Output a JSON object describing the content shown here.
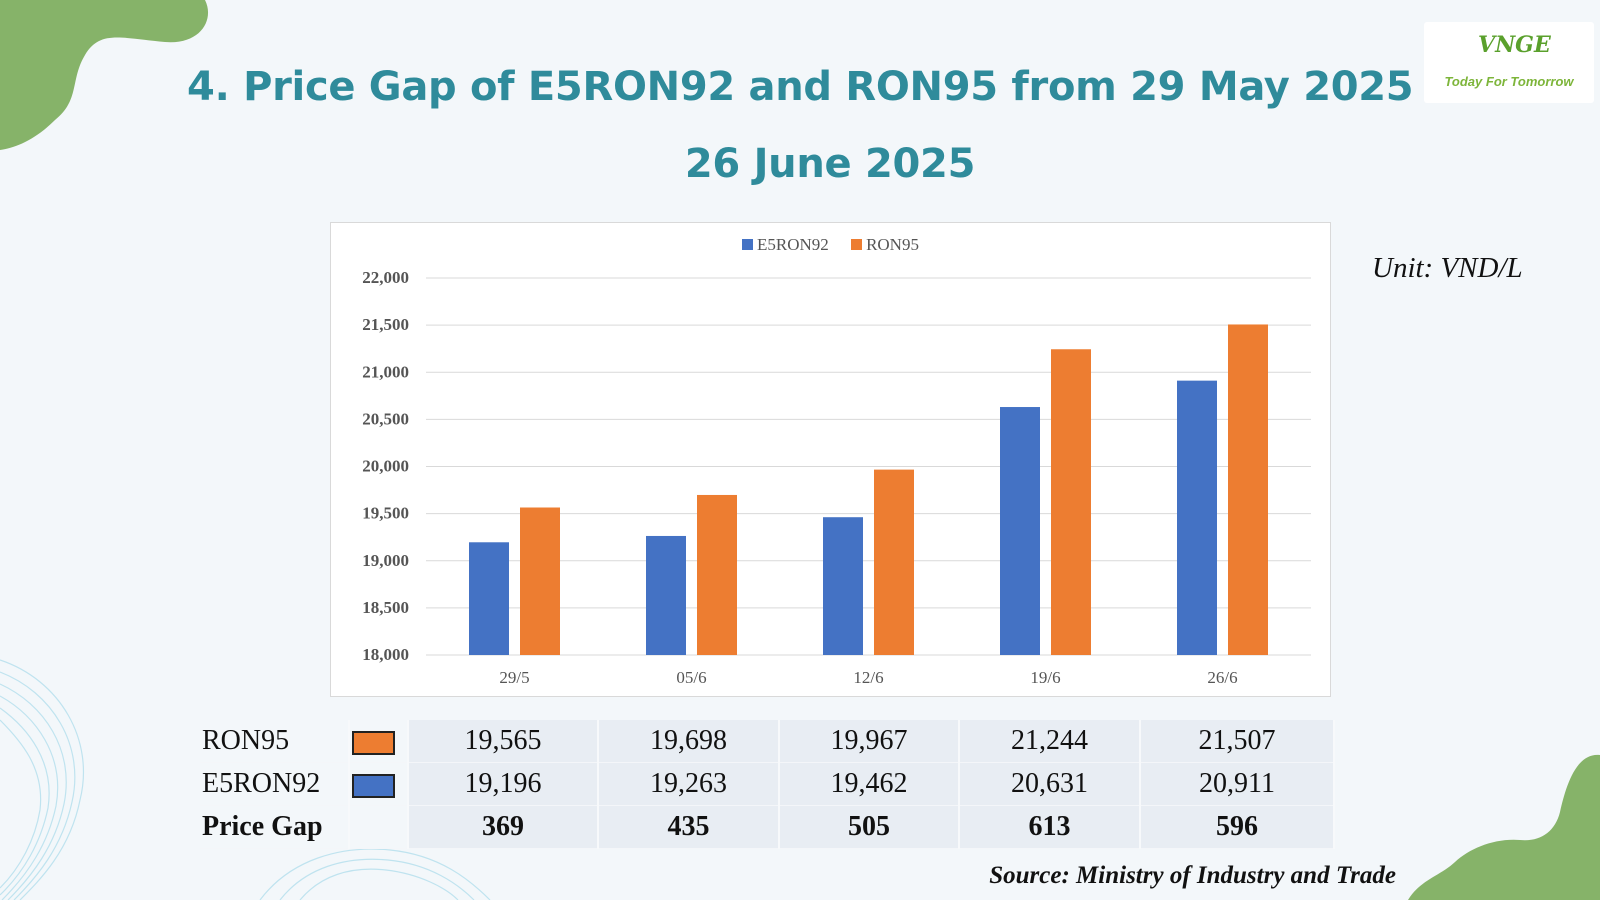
{
  "title_line1": "4. Price Gap of E5RON92 and RON95 from 29 May 2025 to",
  "title_line2": "26 June 2025",
  "logo": {
    "name": "VNGE",
    "tagline": "Today For Tomorrow"
  },
  "unit": "Unit: VND/L",
  "source": "Source: Ministry of Industry and Trade",
  "colors": {
    "title": "#2f8b9b",
    "e5ron92": "#4472c4",
    "ron95": "#ed7d31",
    "brand_green": "#7fae62"
  },
  "chart_data": {
    "type": "bar",
    "categories": [
      "29/5",
      "05/6",
      "12/6",
      "19/6",
      "26/6"
    ],
    "series": [
      {
        "name": "E5RON92",
        "values": [
          19196,
          19263,
          19462,
          20631,
          20911
        ]
      },
      {
        "name": "RON95",
        "values": [
          19565,
          19698,
          19967,
          21244,
          21507
        ]
      }
    ],
    "ylim": [
      18000,
      22000
    ],
    "yticks": [
      18000,
      18500,
      19000,
      19500,
      20000,
      20500,
      21000,
      21500,
      22000
    ],
    "ytick_labels": [
      "18,000",
      "18,500",
      "19,000",
      "19,500",
      "20,000",
      "20,500",
      "21,000",
      "21,500",
      "22,000"
    ],
    "grid": true,
    "legend": "top-center"
  },
  "table": {
    "rows": [
      {
        "label": "RON95",
        "swatch": "#ed7d31",
        "values": [
          "19,565",
          "19,698",
          "19,967",
          "21,244",
          "21,507"
        ]
      },
      {
        "label": "E5RON92",
        "swatch": "#4472c4",
        "values": [
          "19,196",
          "19,263",
          "19,462",
          "20,631",
          "20,911"
        ]
      },
      {
        "label": "Price Gap",
        "values": [
          "369",
          "435",
          "505",
          "613",
          "596"
        ]
      }
    ]
  }
}
